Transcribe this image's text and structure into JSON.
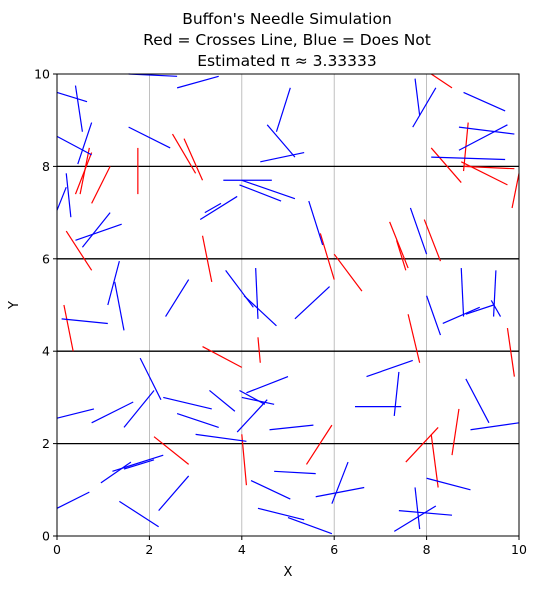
{
  "chart_data": {
    "type": "line",
    "title_lines": [
      "Buffon's Needle Simulation",
      "Red = Crosses Line, Blue = Does Not",
      "Estimated π ≈ 3.33333"
    ],
    "xlabel": "X",
    "ylabel": "Y",
    "xlim": [
      0,
      10
    ],
    "ylim": [
      0,
      10
    ],
    "xticks": [
      "0",
      "2",
      "4",
      "6",
      "8",
      "10"
    ],
    "yticks": [
      "0",
      "2",
      "4",
      "6",
      "8",
      "10"
    ],
    "horizontal_lines_y": [
      2,
      4,
      6,
      8
    ],
    "vertical_gridlines_x": [
      2,
      4,
      6,
      8
    ],
    "colors": {
      "crosses": "#ff0000",
      "no_cross": "#0000ff",
      "reference_line": "#000000",
      "gridline": "#b0b0b0"
    },
    "series": [
      {
        "color": "crosses",
        "segments": [
          [
            0.7,
            8.4,
            0.5,
            7.4
          ],
          [
            0.4,
            7.4,
            0.75,
            8.3
          ],
          [
            0.75,
            7.2,
            1.15,
            8.0
          ],
          [
            1.75,
            8.4,
            1.75,
            7.4
          ],
          [
            2.5,
            8.7,
            3.0,
            7.85
          ],
          [
            2.75,
            8.6,
            3.15,
            7.7
          ],
          [
            8.1,
            10.0,
            8.55,
            9.7
          ],
          [
            9.85,
            7.1,
            10.0,
            7.85
          ],
          [
            8.1,
            8.4,
            8.75,
            7.65
          ],
          [
            8.75,
            8.1,
            9.75,
            7.6
          ],
          [
            8.8,
            8.0,
            9.9,
            7.95
          ],
          [
            8.8,
            7.9,
            8.9,
            8.95
          ],
          [
            0.2,
            6.6,
            0.75,
            5.75
          ],
          [
            3.15,
            6.5,
            3.35,
            5.5
          ],
          [
            5.7,
            6.55,
            6.0,
            5.55
          ],
          [
            6.0,
            6.1,
            6.6,
            5.3
          ],
          [
            7.2,
            6.8,
            7.6,
            5.8
          ],
          [
            7.35,
            6.4,
            7.55,
            5.75
          ],
          [
            7.95,
            6.85,
            8.3,
            5.95
          ],
          [
            0.15,
            5.0,
            0.35,
            4.0
          ],
          [
            3.15,
            4.1,
            4.0,
            3.65
          ],
          [
            4.35,
            4.3,
            4.4,
            3.75
          ],
          [
            7.6,
            4.8,
            7.85,
            3.75
          ],
          [
            9.75,
            4.5,
            9.9,
            3.45
          ],
          [
            2.1,
            2.15,
            2.85,
            1.55
          ],
          [
            4.0,
            2.2,
            4.1,
            1.1
          ],
          [
            5.4,
            1.55,
            5.95,
            2.4
          ],
          [
            7.55,
            1.6,
            8.25,
            2.35
          ],
          [
            8.1,
            2.2,
            8.25,
            1.05
          ],
          [
            8.55,
            1.75,
            8.7,
            2.75
          ]
        ]
      },
      {
        "color": "no_cross",
        "segments": [
          [
            0.0,
            9.6,
            0.65,
            9.4
          ],
          [
            0.4,
            9.75,
            0.55,
            8.75
          ],
          [
            0.0,
            8.65,
            0.75,
            8.25
          ],
          [
            0.45,
            8.05,
            0.75,
            8.95
          ],
          [
            1.55,
            10.0,
            2.6,
            9.95
          ],
          [
            2.6,
            9.7,
            3.5,
            9.95
          ],
          [
            1.55,
            8.85,
            2.45,
            8.4
          ],
          [
            4.55,
            8.9,
            5.15,
            8.2
          ],
          [
            4.75,
            8.75,
            5.05,
            9.7
          ],
          [
            4.4,
            8.1,
            5.35,
            8.3
          ],
          [
            7.7,
            8.85,
            8.2,
            9.7
          ],
          [
            7.75,
            9.9,
            7.85,
            9.1
          ],
          [
            8.7,
            8.35,
            9.75,
            8.9
          ],
          [
            8.8,
            9.6,
            9.7,
            9.2
          ],
          [
            8.7,
            8.85,
            9.9,
            8.7
          ],
          [
            8.1,
            8.2,
            9.7,
            8.15
          ],
          [
            0.0,
            7.05,
            0.2,
            7.55
          ],
          [
            0.2,
            7.85,
            0.3,
            6.9
          ],
          [
            3.6,
            7.7,
            4.65,
            7.7
          ],
          [
            4.0,
            7.7,
            5.15,
            7.3
          ],
          [
            3.95,
            7.6,
            4.85,
            7.25
          ],
          [
            3.1,
            6.85,
            3.9,
            7.35
          ],
          [
            3.2,
            7.0,
            3.55,
            7.2
          ],
          [
            5.45,
            7.25,
            5.75,
            6.3
          ],
          [
            0.4,
            6.4,
            1.4,
            6.75
          ],
          [
            0.55,
            6.25,
            1.15,
            7.0
          ],
          [
            1.1,
            5.0,
            1.35,
            5.95
          ],
          [
            1.25,
            5.5,
            1.45,
            4.45
          ],
          [
            2.35,
            4.75,
            2.85,
            5.55
          ],
          [
            3.65,
            5.75,
            4.25,
            4.95
          ],
          [
            4.3,
            5.8,
            4.35,
            4.7
          ],
          [
            4.05,
            5.2,
            4.75,
            4.55
          ],
          [
            5.15,
            4.7,
            5.9,
            5.4
          ],
          [
            7.65,
            7.1,
            8.0,
            6.1
          ],
          [
            8.0,
            5.2,
            8.3,
            4.35
          ],
          [
            8.35,
            4.6,
            9.15,
            4.95
          ],
          [
            8.75,
            5.8,
            8.8,
            4.75
          ],
          [
            8.85,
            4.8,
            9.45,
            5.0
          ],
          [
            9.4,
            5.1,
            9.6,
            4.75
          ],
          [
            9.5,
            5.75,
            9.45,
            4.75
          ],
          [
            0.1,
            4.7,
            1.1,
            4.6
          ],
          [
            1.8,
            3.85,
            2.25,
            2.95
          ],
          [
            2.3,
            3.0,
            3.35,
            2.75
          ],
          [
            3.3,
            3.15,
            3.85,
            2.7
          ],
          [
            6.7,
            3.45,
            7.7,
            3.8
          ],
          [
            7.4,
            3.55,
            7.3,
            2.6
          ],
          [
            6.45,
            2.8,
            7.45,
            2.8
          ],
          [
            8.85,
            3.4,
            9.35,
            2.45
          ],
          [
            8.95,
            2.3,
            10.0,
            2.45
          ],
          [
            0.0,
            2.55,
            0.8,
            2.75
          ],
          [
            0.75,
            2.45,
            1.65,
            2.9
          ],
          [
            1.45,
            2.35,
            2.1,
            3.15
          ],
          [
            2.6,
            2.65,
            3.5,
            2.35
          ],
          [
            3.0,
            2.2,
            4.1,
            2.05
          ],
          [
            3.9,
            2.25,
            4.55,
            2.95
          ],
          [
            4.6,
            2.3,
            5.55,
            2.4
          ],
          [
            4.1,
            3.1,
            5.0,
            3.45
          ],
          [
            4.0,
            3.0,
            4.7,
            2.85
          ],
          [
            3.95,
            3.15,
            4.5,
            2.85
          ],
          [
            1.2,
            1.4,
            2.3,
            1.75
          ],
          [
            1.45,
            1.45,
            2.1,
            1.65
          ],
          [
            0.95,
            1.15,
            1.6,
            1.6
          ],
          [
            2.2,
            0.55,
            2.85,
            1.3
          ],
          [
            1.35,
            0.75,
            2.2,
            0.2
          ],
          [
            0.0,
            0.6,
            0.7,
            0.95
          ],
          [
            4.2,
            1.2,
            5.05,
            0.8
          ],
          [
            4.7,
            1.4,
            5.6,
            1.35
          ],
          [
            5.6,
            0.85,
            6.65,
            1.05
          ],
          [
            5.95,
            0.7,
            6.3,
            1.6
          ],
          [
            4.35,
            0.6,
            5.35,
            0.35
          ],
          [
            5.0,
            0.4,
            5.95,
            0.05
          ],
          [
            7.4,
            0.55,
            8.55,
            0.45
          ],
          [
            7.3,
            0.1,
            8.2,
            0.65
          ],
          [
            7.75,
            1.05,
            7.85,
            0.15
          ],
          [
            8.0,
            1.25,
            8.95,
            1.0
          ]
        ]
      }
    ]
  }
}
